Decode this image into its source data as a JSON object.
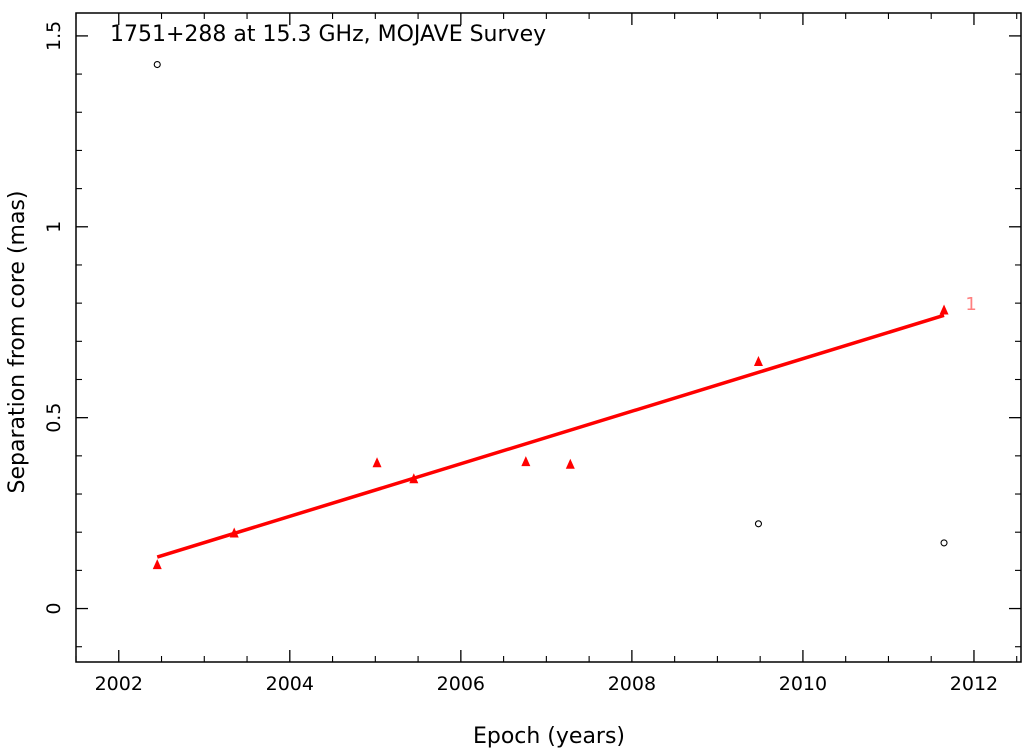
{
  "chart_data": {
    "type": "scatter",
    "title": "1751+288 at 15.3 GHz, MOJAVE Survey",
    "xlabel": "Epoch (years)",
    "ylabel": "Separation from core (mas)",
    "xlim": [
      2001.5,
      2012.55
    ],
    "ylim": [
      -0.14,
      1.56
    ],
    "xticks": [
      2002,
      2004,
      2006,
      2008,
      2010,
      2012
    ],
    "yticks": [
      0,
      0.5,
      1,
      1.5
    ],
    "xtick_labels": [
      "2002",
      "2004",
      "2006",
      "2008",
      "2010",
      "2012"
    ],
    "ytick_labels": [
      "0",
      "0.5",
      "1",
      "1.5"
    ],
    "grid": false,
    "series": [
      {
        "marker": "triangle",
        "color": "#ff0000",
        "points": [
          {
            "x": 2002.45,
            "y": 0.115
          },
          {
            "x": 2003.35,
            "y": 0.198
          },
          {
            "x": 2005.02,
            "y": 0.382
          },
          {
            "x": 2005.45,
            "y": 0.34
          },
          {
            "x": 2006.76,
            "y": 0.385
          },
          {
            "x": 2007.28,
            "y": 0.378
          },
          {
            "x": 2009.48,
            "y": 0.647
          },
          {
            "x": 2011.65,
            "y": 0.782
          }
        ]
      },
      {
        "marker": "open-circle",
        "color": "#000000",
        "points": [
          {
            "x": 2002.45,
            "y": 1.425
          },
          {
            "x": 2009.48,
            "y": 0.222
          },
          {
            "x": 2011.65,
            "y": 0.172
          }
        ]
      }
    ],
    "fit_line": {
      "color": "#ff0000",
      "x": [
        2002.45,
        2011.65
      ],
      "y": [
        0.135,
        0.768
      ]
    },
    "annotations": [
      {
        "text": "1",
        "x": 2011.9,
        "y": 0.795,
        "color": "#ff7f7f"
      }
    ]
  }
}
